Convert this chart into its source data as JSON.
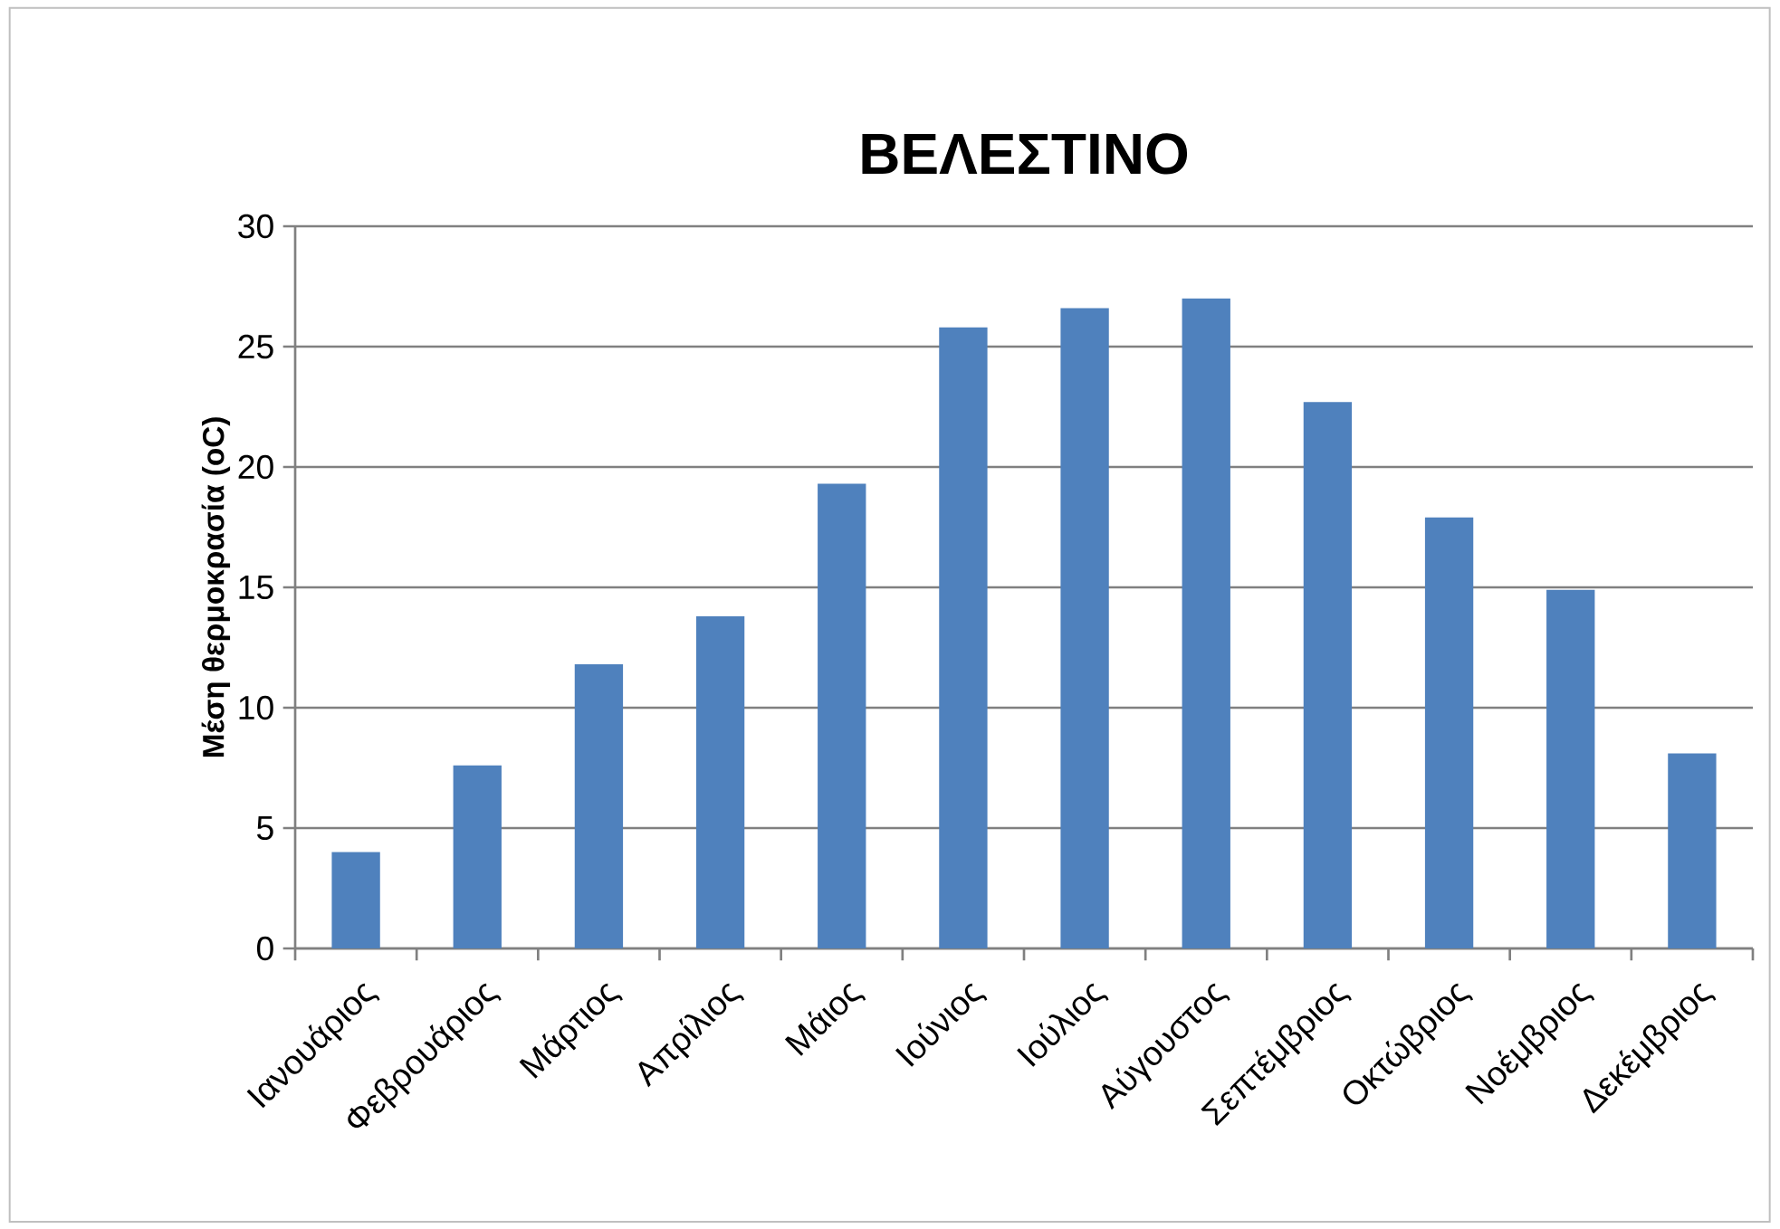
{
  "chart_data": {
    "type": "bar",
    "title": "ΒΕΛΕΣΤΙΝΟ",
    "ylabel": "Μέση θερμοκρασία (oC)",
    "categories": [
      "Ιανουάριος",
      "Φεβρουάριος",
      "Μάρτιος",
      "Απρίλιος",
      "Μάιος",
      "Ιούνιος",
      "Ιούλιος",
      "Αύγουστος",
      "Σεπτέμβριος",
      "Οκτώβριος",
      "Νοέμβριος",
      "Δεκέμβριος"
    ],
    "values": [
      4.0,
      7.6,
      11.8,
      13.8,
      19.3,
      25.8,
      26.6,
      27.0,
      22.7,
      17.9,
      14.9,
      8.1
    ],
    "color": "#4f81bd",
    "ylim": [
      0,
      30
    ],
    "yticks": [
      0,
      5,
      10,
      15,
      20,
      25,
      30
    ],
    "grid": "y"
  }
}
